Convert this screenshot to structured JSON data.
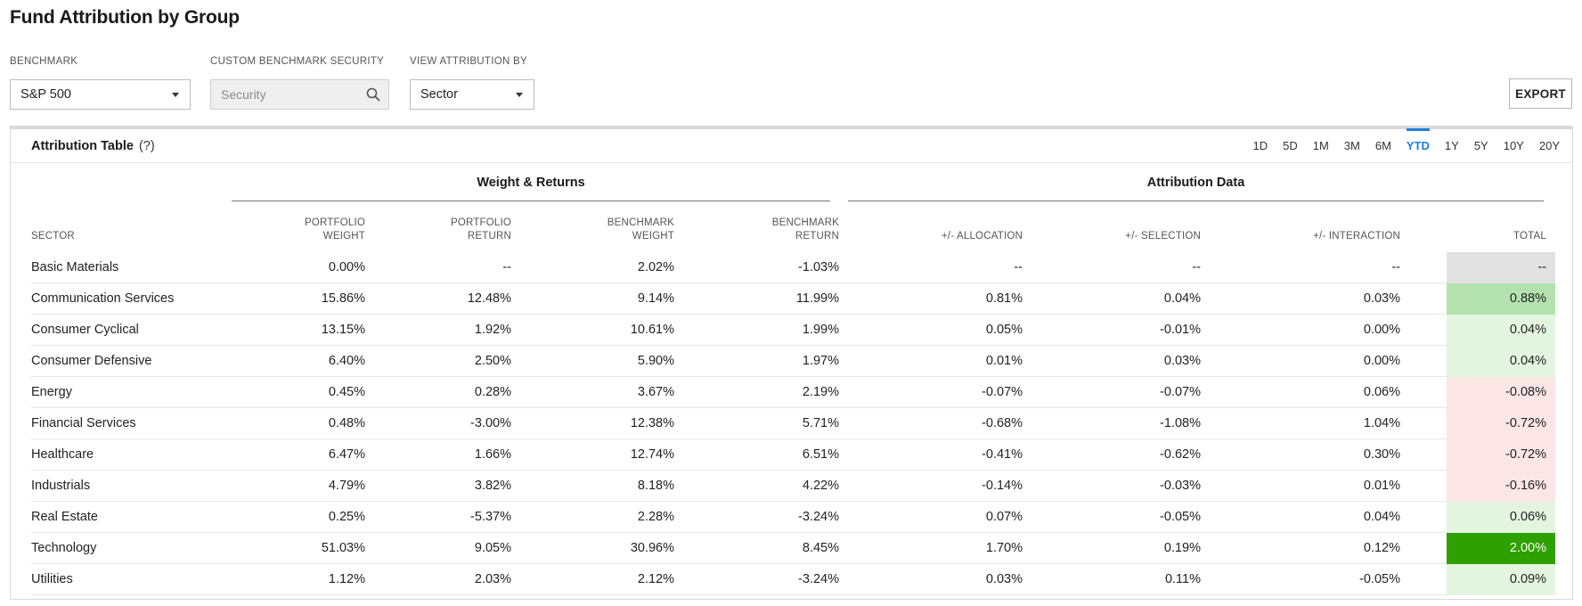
{
  "page": {
    "title": "Fund Attribution by Group"
  },
  "controls": {
    "benchmark_label": "BENCHMARK",
    "benchmark_value": "S&P 500",
    "custom_label": "CUSTOM BENCHMARK SECURITY",
    "custom_placeholder": "Security",
    "view_label": "VIEW ATTRIBUTION BY",
    "view_value": "Sector",
    "export_label": "EXPORT"
  },
  "panel": {
    "title": "Attribution Table",
    "help": "(?)",
    "periods": [
      "1D",
      "5D",
      "1M",
      "3M",
      "6M",
      "YTD",
      "1Y",
      "5Y",
      "10Y",
      "20Y"
    ],
    "active_period": "YTD",
    "group_weight": "Weight & Returns",
    "group_attribution": "Attribution Data",
    "headers": {
      "sector": "SECTOR",
      "portfolio_weight": "PORTFOLIO WEIGHT",
      "portfolio_return": "PORTFOLIO RETURN",
      "benchmark_weight": "BENCHMARK WEIGHT",
      "benchmark_return": "BENCHMARK RETURN",
      "allocation": "+/- ALLOCATION",
      "selection": "+/- SELECTION",
      "interaction": "+/- INTERACTION",
      "total": "TOTAL"
    }
  },
  "colors": {
    "accent": "#1f7fd6",
    "total_neutral": "#e2e2e2",
    "total_strong_green": "#2ea000",
    "total_mid_green": "#b4e2ae",
    "total_light_green": "#e3f5df",
    "total_light_red": "#fbe5e5"
  },
  "rows": [
    {
      "sector": "Basic Materials",
      "portfolio_weight": "0.00%",
      "portfolio_return": "--",
      "benchmark_weight": "2.02%",
      "benchmark_return": "-1.03%",
      "allocation": "--",
      "selection": "--",
      "interaction": "--",
      "total": "--",
      "total_bg": "#e2e2e2",
      "total_color": "#222"
    },
    {
      "sector": "Communication Services",
      "portfolio_weight": "15.86%",
      "portfolio_return": "12.48%",
      "benchmark_weight": "9.14%",
      "benchmark_return": "11.99%",
      "allocation": "0.81%",
      "selection": "0.04%",
      "interaction": "0.03%",
      "total": "0.88%",
      "total_bg": "#b4e2ae",
      "total_color": "#222"
    },
    {
      "sector": "Consumer Cyclical",
      "portfolio_weight": "13.15%",
      "portfolio_return": "1.92%",
      "benchmark_weight": "10.61%",
      "benchmark_return": "1.99%",
      "allocation": "0.05%",
      "selection": "-0.01%",
      "interaction": "0.00%",
      "total": "0.04%",
      "total_bg": "#e3f5df",
      "total_color": "#222"
    },
    {
      "sector": "Consumer Defensive",
      "portfolio_weight": "6.40%",
      "portfolio_return": "2.50%",
      "benchmark_weight": "5.90%",
      "benchmark_return": "1.97%",
      "allocation": "0.01%",
      "selection": "0.03%",
      "interaction": "0.00%",
      "total": "0.04%",
      "total_bg": "#e3f5df",
      "total_color": "#222"
    },
    {
      "sector": "Energy",
      "portfolio_weight": "0.45%",
      "portfolio_return": "0.28%",
      "benchmark_weight": "3.67%",
      "benchmark_return": "2.19%",
      "allocation": "-0.07%",
      "selection": "-0.07%",
      "interaction": "0.06%",
      "total": "-0.08%",
      "total_bg": "#fbe5e5",
      "total_color": "#222"
    },
    {
      "sector": "Financial Services",
      "portfolio_weight": "0.48%",
      "portfolio_return": "-3.00%",
      "benchmark_weight": "12.38%",
      "benchmark_return": "5.71%",
      "allocation": "-0.68%",
      "selection": "-1.08%",
      "interaction": "1.04%",
      "total": "-0.72%",
      "total_bg": "#fbe5e5",
      "total_color": "#222"
    },
    {
      "sector": "Healthcare",
      "portfolio_weight": "6.47%",
      "portfolio_return": "1.66%",
      "benchmark_weight": "12.74%",
      "benchmark_return": "6.51%",
      "allocation": "-0.41%",
      "selection": "-0.62%",
      "interaction": "0.30%",
      "total": "-0.72%",
      "total_bg": "#fbe5e5",
      "total_color": "#222"
    },
    {
      "sector": "Industrials",
      "portfolio_weight": "4.79%",
      "portfolio_return": "3.82%",
      "benchmark_weight": "8.18%",
      "benchmark_return": "4.22%",
      "allocation": "-0.14%",
      "selection": "-0.03%",
      "interaction": "0.01%",
      "total": "-0.16%",
      "total_bg": "#fbe5e5",
      "total_color": "#222"
    },
    {
      "sector": "Real Estate",
      "portfolio_weight": "0.25%",
      "portfolio_return": "-5.37%",
      "benchmark_weight": "2.28%",
      "benchmark_return": "-3.24%",
      "allocation": "0.07%",
      "selection": "-0.05%",
      "interaction": "0.04%",
      "total": "0.06%",
      "total_bg": "#e3f5df",
      "total_color": "#222"
    },
    {
      "sector": "Technology",
      "portfolio_weight": "51.03%",
      "portfolio_return": "9.05%",
      "benchmark_weight": "30.96%",
      "benchmark_return": "8.45%",
      "allocation": "1.70%",
      "selection": "0.19%",
      "interaction": "0.12%",
      "total": "2.00%",
      "total_bg": "#2ea000",
      "total_color": "#ffffff"
    },
    {
      "sector": "Utilities",
      "portfolio_weight": "1.12%",
      "portfolio_return": "2.03%",
      "benchmark_weight": "2.12%",
      "benchmark_return": "-3.24%",
      "allocation": "0.03%",
      "selection": "0.11%",
      "interaction": "-0.05%",
      "total": "0.09%",
      "total_bg": "#e3f5df",
      "total_color": "#222"
    }
  ]
}
